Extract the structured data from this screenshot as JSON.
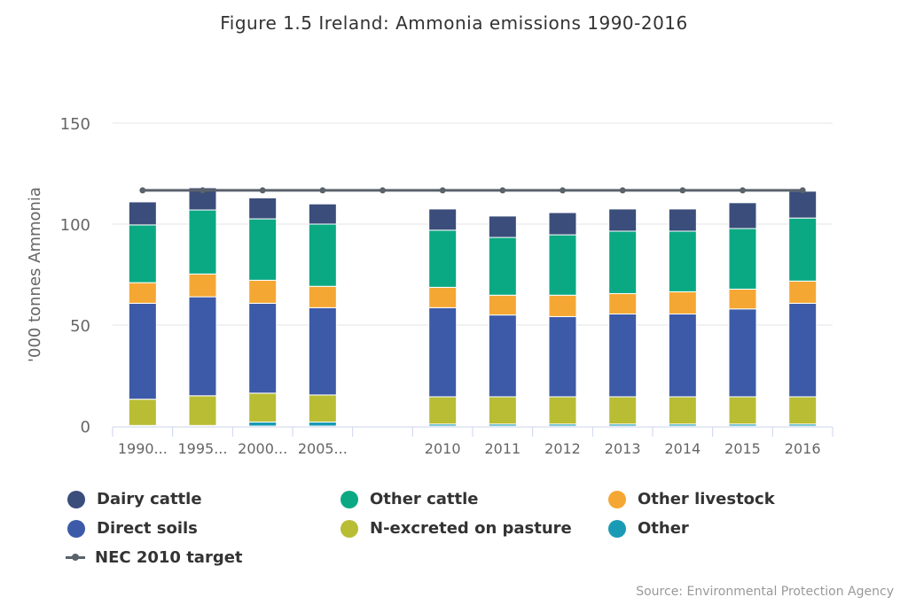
{
  "chart_data": {
    "type": "bar",
    "stacked": true,
    "title": "Figure 1.5 Ireland: Ammonia emissions 1990-2016",
    "xlabel": "",
    "ylabel": "'000 tonnes Ammonia",
    "ylim": [
      0,
      150
    ],
    "yticks": [
      0,
      50,
      100,
      150
    ],
    "grid": true,
    "categories": [
      "1990...",
      "1995...",
      "2000...",
      "2005...",
      "",
      "2010",
      "2011",
      "2012",
      "2013",
      "2014",
      "2015",
      "2016"
    ],
    "series": [
      {
        "name": "Other",
        "color": "#1a9bb5",
        "values": [
          0.3,
          0.3,
          2.0,
          2.0,
          null,
          1.0,
          1.0,
          1.0,
          1.0,
          1.0,
          1.0,
          1.0
        ]
      },
      {
        "name": "N-excreted on pasture",
        "color": "#b8bd34",
        "values": [
          13.0,
          14.7,
          14.3,
          13.4,
          null,
          13.5,
          13.5,
          13.5,
          13.5,
          13.5,
          13.5,
          13.5
        ]
      },
      {
        "name": "Direct soils",
        "color": "#3c5aa8",
        "values": [
          47.5,
          49.0,
          44.5,
          43.2,
          null,
          44.1,
          40.5,
          39.7,
          41.0,
          41.0,
          43.5,
          46.3
        ]
      },
      {
        "name": "Other livestock",
        "color": "#f5a733",
        "values": [
          10.2,
          11.3,
          11.4,
          10.6,
          null,
          10.1,
          9.8,
          10.6,
          10.1,
          11.0,
          9.8,
          11.0
        ]
      },
      {
        "name": "Other cattle",
        "color": "#0aa983",
        "values": [
          28.6,
          31.7,
          30.4,
          30.8,
          null,
          28.3,
          28.6,
          29.9,
          30.9,
          30.0,
          30.0,
          31.2
        ]
      },
      {
        "name": "Dairy cattle",
        "color": "#3b4d7b",
        "values": [
          11.4,
          11.0,
          10.4,
          10.0,
          null,
          10.5,
          10.6,
          11.0,
          11.0,
          11.0,
          12.8,
          13.3
        ]
      }
    ],
    "line_series": {
      "name": "NEC 2010 target",
      "color": "#5a626c",
      "values": [
        116.7,
        116.7,
        116.7,
        116.7,
        116.7,
        116.7,
        116.7,
        116.7,
        116.7,
        116.7,
        116.7,
        116.7
      ]
    },
    "legend_position": "bottom",
    "source": "Source: Environmental Protection Agency"
  },
  "legend": {
    "items": [
      {
        "label": "Dairy cattle",
        "color": "#3b4d7b"
      },
      {
        "label": "Other cattle",
        "color": "#0aa983"
      },
      {
        "label": "Other livestock",
        "color": "#f5a733"
      },
      {
        "label": "Direct soils",
        "color": "#3c5aa8"
      },
      {
        "label": "N-excreted on pasture",
        "color": "#b8bd34"
      },
      {
        "label": "Other",
        "color": "#1a9bb5"
      },
      {
        "label": "NEC 2010 target",
        "color": "#5a626c"
      }
    ]
  }
}
